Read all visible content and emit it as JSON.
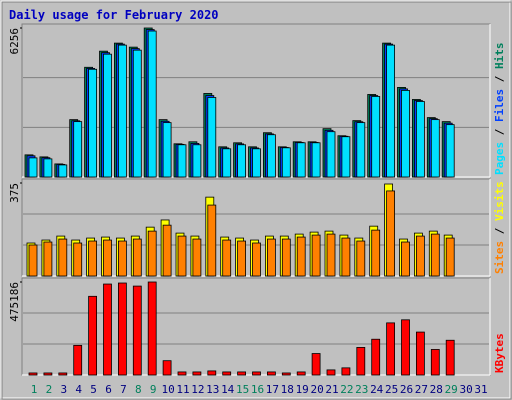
{
  "chart_data": [
    {
      "type": "bar",
      "title": "Daily usage for February 2020",
      "separator": "/",
      "ylim": [
        0,
        6256
      ],
      "yticks": [
        6256
      ],
      "grid": true,
      "series": [
        {
          "name": "Hits",
          "color": "#00805c",
          "values": [
            930,
            845,
            550,
            2409,
            4607,
            5284,
            5622,
            5453,
            6256,
            2409,
            1395,
            1479,
            3508,
            1268,
            1437,
            1268,
            1860,
            1268,
            1479,
            1479,
            2029,
            1733,
            2367,
            3466,
            5622,
            3762,
            3255,
            2494,
            2325,
            null,
            null
          ]
        },
        {
          "name": "Files",
          "color": "#0040ff",
          "values": [
            890,
            810,
            530,
            2360,
            4560,
            5220,
            5580,
            5390,
            6190,
            2340,
            1370,
            1410,
            3420,
            1220,
            1390,
            1220,
            1810,
            1240,
            1450,
            1450,
            1960,
            1710,
            2320,
            3420,
            5580,
            3700,
            3210,
            2450,
            2260,
            null,
            null
          ]
        },
        {
          "name": "Pages",
          "color": "#00e0ff",
          "values": [
            803,
            761,
            507,
            2325,
            4523,
            5157,
            5537,
            5326,
            6129,
            2283,
            1353,
            1353,
            3339,
            1184,
            1353,
            1184,
            1775,
            1226,
            1437,
            1437,
            1902,
            1691,
            2283,
            3382,
            5537,
            3635,
            3170,
            2409,
            2198,
            null,
            null
          ]
        }
      ]
    },
    {
      "type": "bar",
      "separator": "/",
      "ylim": [
        0,
        375
      ],
      "yticks": [
        375
      ],
      "grid": true,
      "series": [
        {
          "name": "Visits",
          "color": "#ffff00",
          "values": [
            133,
            145,
            161,
            145,
            153,
            157,
            153,
            161,
            197,
            226,
            173,
            161,
            318,
            157,
            153,
            145,
            161,
            161,
            169,
            177,
            181,
            165,
            153,
            201,
            371,
            149,
            173,
            181,
            165,
            null,
            null
          ]
        },
        {
          "name": "Sites",
          "color": "#ff8000",
          "values": [
            125,
            137,
            149,
            133,
            141,
            145,
            141,
            149,
            181,
            205,
            161,
            149,
            286,
            145,
            141,
            133,
            149,
            149,
            157,
            165,
            169,
            153,
            141,
            185,
            343,
            137,
            161,
            169,
            153,
            null,
            null
          ]
        }
      ]
    },
    {
      "type": "bar",
      "ylim": [
        0,
        475186
      ],
      "yticks": [
        475186
      ],
      "grid": true,
      "categories": [
        "1",
        "2",
        "3",
        "4",
        "5",
        "6",
        "7",
        "8",
        "9",
        "10",
        "11",
        "12",
        "13",
        "14",
        "15",
        "16",
        "17",
        "18",
        "19",
        "20",
        "21",
        "22",
        "23",
        "24",
        "25",
        "26",
        "27",
        "28",
        "29",
        "30",
        "31"
      ],
      "label_colors": [
        "#00805c",
        "#00805c",
        "#000080",
        "#000080",
        "#000080",
        "#000080",
        "#000080",
        "#00805c",
        "#00805c",
        "#000080",
        "#000080",
        "#000080",
        "#000080",
        "#000080",
        "#00805c",
        "#00805c",
        "#000080",
        "#000080",
        "#000080",
        "#000080",
        "#000080",
        "#00805c",
        "#00805c",
        "#000080",
        "#000080",
        "#000080",
        "#000080",
        "#000080",
        "#00805c",
        "#000080",
        "#000080"
      ],
      "series": [
        {
          "name": "KBytes",
          "color": "#ff0000",
          "values": [
            10444,
            10444,
            10444,
            151438,
            402094,
            464758,
            469980,
            454314,
            475186,
            73108,
            15666,
            15666,
            20888,
            15666,
            15666,
            15666,
            15666,
            10444,
            15666,
            109662,
            26110,
            36554,
            140994,
            182770,
            266322,
            281988,
            219324,
            130550,
            177548,
            null,
            null
          ]
        }
      ]
    }
  ]
}
